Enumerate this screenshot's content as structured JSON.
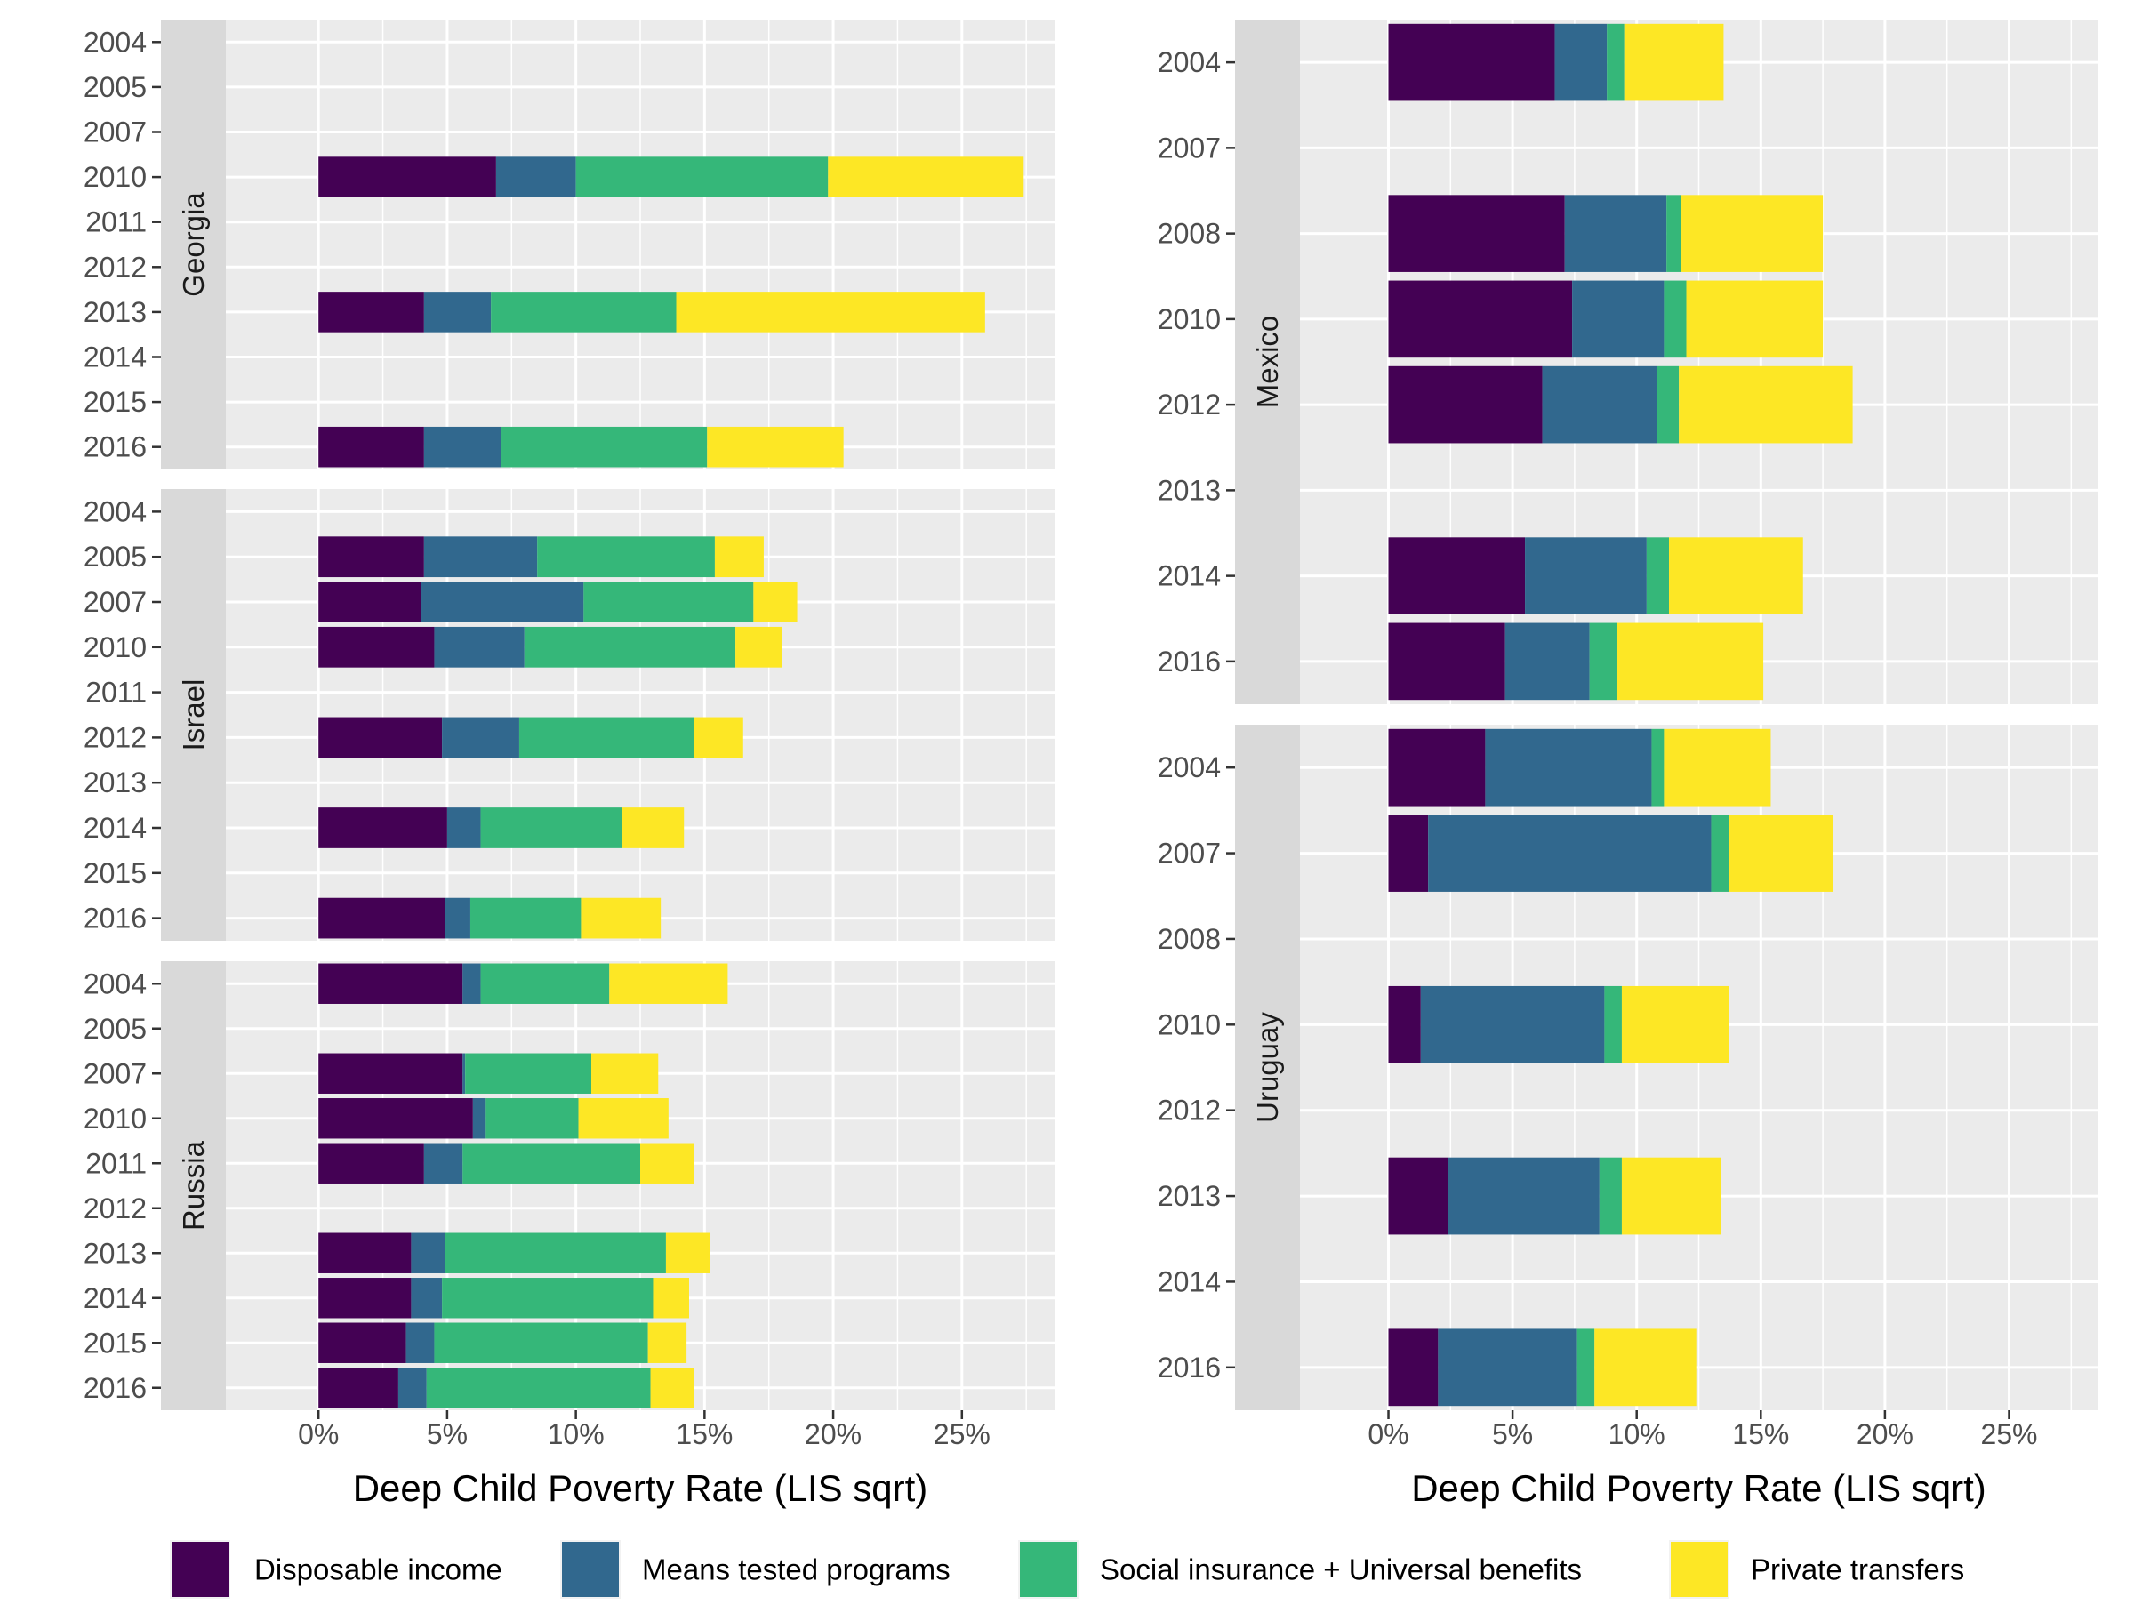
{
  "chart_data": {
    "type": "bar",
    "orientation": "horizontal",
    "stacked": true,
    "xlabel": "Deep Child Poverty Rate (LIS sqrt)",
    "xlim": [
      -0.036,
      0.286
    ],
    "xticks": [
      0,
      0.05,
      0.1,
      0.15,
      0.2,
      0.25
    ],
    "xtick_labels": [
      "0%",
      "5%",
      "10%",
      "15%",
      "20%",
      "25%"
    ],
    "grid": true,
    "legend_position": "bottom",
    "series": [
      {
        "name": "Disposable income",
        "color": "#440154"
      },
      {
        "name": "Means tested programs",
        "color": "#31688E"
      },
      {
        "name": "Social insurance + Universal benefits",
        "color": "#35B779"
      },
      {
        "name": "Private transfers",
        "color": "#FDE725"
      }
    ],
    "panels": [
      {
        "country": "Georgia",
        "categories": [
          "2004",
          "2005",
          "2007",
          "2010",
          "2011",
          "2012",
          "2013",
          "2014",
          "2015",
          "2016"
        ],
        "values": {
          "2010": [
            0.069,
            0.031,
            0.098,
            0.076
          ],
          "2013": [
            0.041,
            0.026,
            0.072,
            0.12
          ],
          "2016": [
            0.041,
            0.03,
            0.08,
            0.053
          ]
        }
      },
      {
        "country": "Israel",
        "categories": [
          "2004",
          "2005",
          "2007",
          "2010",
          "2011",
          "2012",
          "2013",
          "2014",
          "2015",
          "2016"
        ],
        "values": {
          "2005": [
            0.041,
            0.044,
            0.069,
            0.019
          ],
          "2007": [
            0.04,
            0.063,
            0.066,
            0.017
          ],
          "2010": [
            0.045,
            0.035,
            0.082,
            0.018
          ],
          "2012": [
            0.048,
            0.03,
            0.068,
            0.019
          ],
          "2014": [
            0.05,
            0.013,
            0.055,
            0.024
          ],
          "2016": [
            0.049,
            0.01,
            0.043,
            0.031
          ]
        }
      },
      {
        "country": "Russia",
        "categories": [
          "2004",
          "2005",
          "2007",
          "2010",
          "2011",
          "2012",
          "2013",
          "2014",
          "2015",
          "2016"
        ],
        "values": {
          "2004": [
            0.056,
            0.007,
            0.05,
            0.046
          ],
          "2007": [
            0.056,
            0.001,
            0.049,
            0.026
          ],
          "2010": [
            0.06,
            0.005,
            0.036,
            0.035
          ],
          "2011": [
            0.041,
            0.015,
            0.069,
            0.021
          ],
          "2013": [
            0.036,
            0.013,
            0.086,
            0.017
          ],
          "2014": [
            0.036,
            0.012,
            0.082,
            0.014
          ],
          "2015": [
            0.034,
            0.011,
            0.083,
            0.015
          ],
          "2016": [
            0.031,
            0.011,
            0.087,
            0.017
          ]
        }
      },
      {
        "country": "Mexico",
        "categories": [
          "2004",
          "2007",
          "2008",
          "2010",
          "2012",
          "2013",
          "2014",
          "2016"
        ],
        "values": {
          "2004": [
            0.067,
            0.021,
            0.007,
            0.04
          ],
          "2008": [
            0.071,
            0.041,
            0.006,
            0.057
          ],
          "2010": [
            0.074,
            0.037,
            0.009,
            0.055
          ],
          "2012": [
            0.062,
            0.046,
            0.009,
            0.07
          ],
          "2014": [
            0.055,
            0.049,
            0.009,
            0.054
          ],
          "2016": [
            0.047,
            0.034,
            0.011,
            0.059
          ]
        }
      },
      {
        "country": "Uruguay",
        "categories": [
          "2004",
          "2007",
          "2008",
          "2010",
          "2012",
          "2013",
          "2014",
          "2016"
        ],
        "values": {
          "2004": [
            0.039,
            0.067,
            0.005,
            0.043
          ],
          "2007": [
            0.016,
            0.114,
            0.007,
            0.042
          ],
          "2010": [
            0.013,
            0.074,
            0.007,
            0.043
          ],
          "2013": [
            0.024,
            0.061,
            0.009,
            0.04
          ],
          "2016": [
            0.02,
            0.056,
            0.007,
            0.041
          ]
        }
      }
    ]
  }
}
